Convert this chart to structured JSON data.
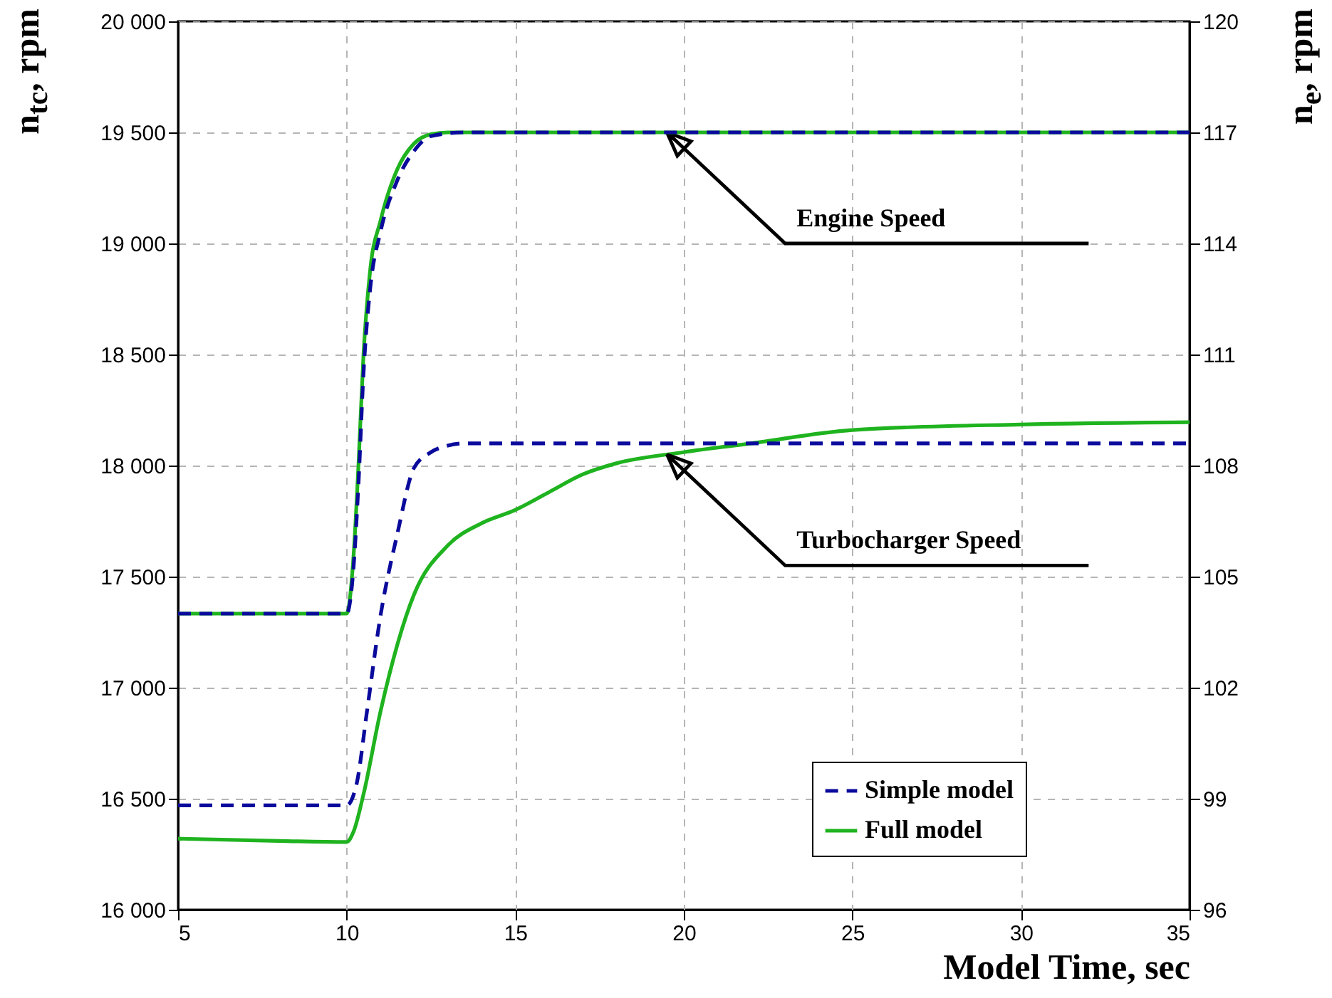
{
  "chart_data": {
    "type": "line",
    "xlabel": "Model Time, sec",
    "ylabel": "n$_{tc}$, rpm",
    "y2label": "n$_{e}$, rpm",
    "xlim": [
      5,
      35
    ],
    "xticks": [
      5,
      10,
      15,
      20,
      25,
      30,
      35
    ],
    "ylim": [
      16000,
      20000
    ],
    "yticks": [
      {
        "value": 16000,
        "label": "16 000"
      },
      {
        "value": 16500,
        "label": "16 500"
      },
      {
        "value": 17000,
        "label": "17 000"
      },
      {
        "value": 17500,
        "label": "17 500"
      },
      {
        "value": 18000,
        "label": "18 000"
      },
      {
        "value": 18500,
        "label": "18 500"
      },
      {
        "value": 19000,
        "label": "19 000"
      },
      {
        "value": 19500,
        "label": "19 500"
      },
      {
        "value": 20000,
        "label": "20 000"
      }
    ],
    "y2lim": [
      96,
      120
    ],
    "y2ticks": [
      96,
      99,
      102,
      105,
      108,
      111,
      114,
      117,
      120
    ],
    "grid": true,
    "legend": "bottom right",
    "series": [
      {
        "name": "Simple model",
        "color": "#0a0a9c",
        "line_style": "dashed",
        "x": [
          5,
          10,
          10.3,
          10.6,
          11,
          11.5,
          12,
          12.5,
          13,
          13.5,
          14,
          35
        ],
        "values": [
          16470,
          16470,
          16570,
          16890,
          17320,
          17690,
          17990,
          18060,
          18090,
          18100,
          18100,
          18100
        ]
      },
      {
        "name": "Full model",
        "color": "#1fb31f",
        "line_style": "solid",
        "x": [
          5,
          8,
          10,
          10.2,
          10.5,
          11,
          12,
          13,
          14,
          15,
          16,
          17,
          18,
          20,
          22,
          25,
          30,
          35
        ],
        "values": [
          16320,
          16310,
          16305,
          16350,
          16520,
          16890,
          17420,
          17640,
          17740,
          17800,
          17880,
          17960,
          18010,
          18060,
          18100,
          18160,
          18185,
          18195
        ]
      },
      {
        "color": "#0a0a9c",
        "line_style": "dashed",
        "axis": "y2",
        "x": [
          5,
          10,
          10.2,
          10.35,
          10.5,
          10.7,
          11,
          11.5,
          12,
          12.5,
          13.5,
          35
        ],
        "values": [
          104,
          104,
          105.2,
          107.5,
          110.5,
          112.8,
          114.3,
          115.7,
          116.5,
          116.9,
          117,
          117
        ]
      },
      {
        "color": "#1fb31f",
        "line_style": "solid",
        "axis": "y2",
        "x": [
          5,
          10,
          10.2,
          10.35,
          10.5,
          10.7,
          11,
          11.5,
          12,
          12.5,
          13,
          35
        ],
        "values": [
          104,
          104,
          105.5,
          108,
          111,
          113.3,
          114.6,
          116,
          116.7,
          116.95,
          117,
          117
        ]
      }
    ],
    "annotations": [
      {
        "text": "Engine Speed",
        "x": 19.5,
        "y": 19500
      },
      {
        "text": "Turbocharger Speed",
        "x": 19.5,
        "y": 18050
      }
    ]
  }
}
